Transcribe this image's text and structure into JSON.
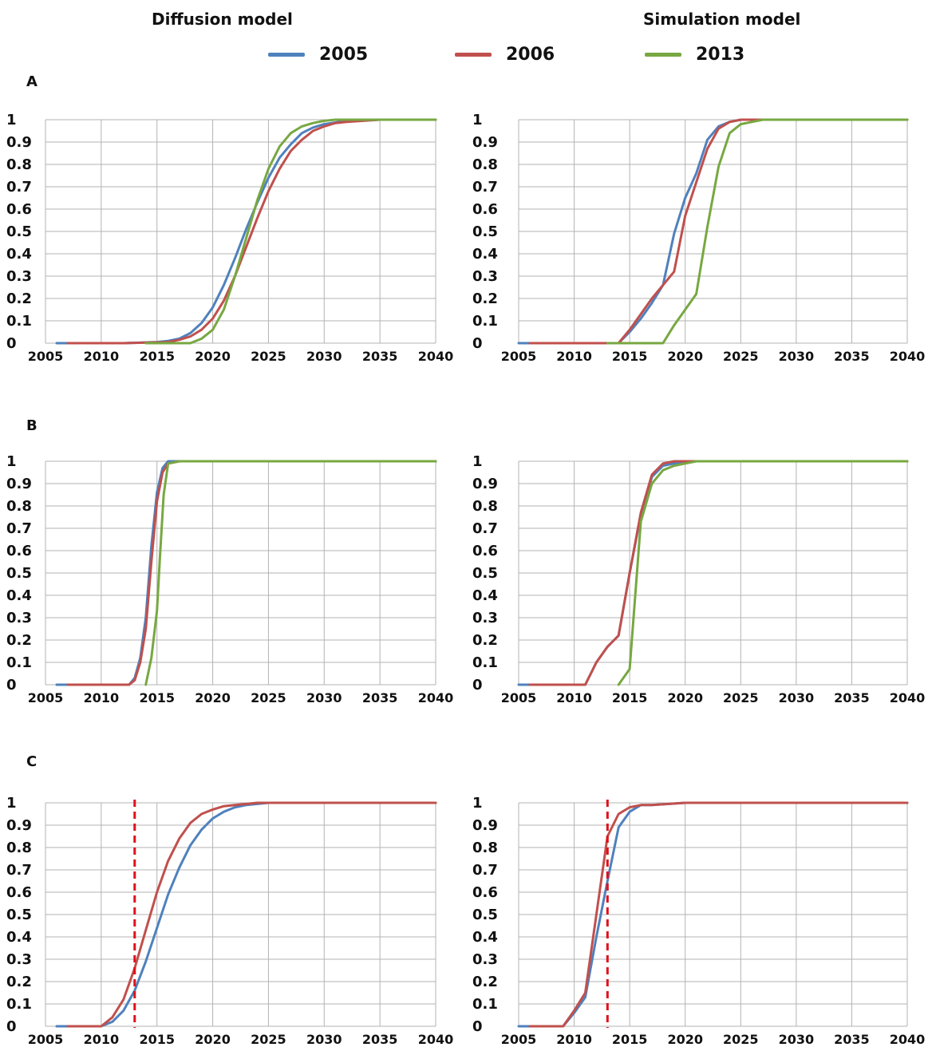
{
  "headers": {
    "left": "Diffusion model",
    "right": "Simulation model"
  },
  "legend": [
    {
      "label": "2005",
      "color": "#4f81bd"
    },
    {
      "label": "2006",
      "color": "#c0504d"
    },
    {
      "label": "2013",
      "color": "#77a841"
    }
  ],
  "colors": {
    "grid": "#b3b3b3",
    "vline": "#e0101a"
  },
  "rows": [
    {
      "label": "A"
    },
    {
      "label": "B"
    },
    {
      "label": "C"
    }
  ],
  "chart_data": [
    {
      "type": "line",
      "panel": "A",
      "model": "Diffusion model",
      "xlim": [
        2005,
        2040
      ],
      "ylim": [
        0,
        1
      ],
      "x_ticks": [
        2005,
        2010,
        2015,
        2020,
        2025,
        2030,
        2035,
        2040
      ],
      "y_ticks": [
        0,
        0.1,
        0.2,
        0.3,
        0.4,
        0.5,
        0.6,
        0.7,
        0.8,
        0.9,
        1
      ],
      "series": [
        {
          "name": "2005",
          "x": [
            2006,
            2012,
            2015,
            2016,
            2017,
            2018,
            2019,
            2020,
            2021,
            2022,
            2023,
            2024,
            2025,
            2026,
            2027,
            2028,
            2029,
            2030,
            2032,
            2035,
            2040
          ],
          "values": [
            0,
            0,
            0.005,
            0.01,
            0.02,
            0.045,
            0.09,
            0.16,
            0.26,
            0.38,
            0.51,
            0.63,
            0.74,
            0.83,
            0.89,
            0.94,
            0.965,
            0.98,
            0.995,
            1,
            1
          ]
        },
        {
          "name": "2006",
          "x": [
            2007,
            2012,
            2016,
            2017,
            2018,
            2019,
            2020,
            2021,
            2022,
            2023,
            2024,
            2025,
            2026,
            2027,
            2028,
            2029,
            2030,
            2031,
            2032,
            2035,
            2040
          ],
          "values": [
            0,
            0,
            0.005,
            0.015,
            0.03,
            0.06,
            0.11,
            0.19,
            0.3,
            0.43,
            0.56,
            0.68,
            0.78,
            0.86,
            0.91,
            0.95,
            0.97,
            0.985,
            0.99,
            1,
            1
          ]
        },
        {
          "name": "2013",
          "x": [
            2014,
            2018,
            2019,
            2020,
            2021,
            2022,
            2023,
            2024,
            2025,
            2026,
            2027,
            2028,
            2029,
            2030,
            2031,
            2035,
            2040
          ],
          "values": [
            0,
            0,
            0.02,
            0.06,
            0.15,
            0.3,
            0.47,
            0.64,
            0.78,
            0.88,
            0.94,
            0.97,
            0.985,
            0.995,
            1,
            1,
            1
          ]
        }
      ]
    },
    {
      "type": "line",
      "panel": "A",
      "model": "Simulation model",
      "xlim": [
        2005,
        2040
      ],
      "ylim": [
        0,
        1
      ],
      "x_ticks": [
        2005,
        2010,
        2015,
        2020,
        2025,
        2030,
        2035,
        2040
      ],
      "y_ticks": [
        0,
        0.1,
        0.2,
        0.3,
        0.4,
        0.5,
        0.6,
        0.7,
        0.8,
        0.9,
        1
      ],
      "series": [
        {
          "name": "2005",
          "x": [
            2005,
            2014,
            2015,
            2016,
            2017,
            2018,
            2019,
            2020,
            2021,
            2022,
            2023,
            2024,
            2025,
            2026,
            2027,
            2040
          ],
          "values": [
            0,
            0,
            0.05,
            0.11,
            0.18,
            0.26,
            0.49,
            0.65,
            0.76,
            0.91,
            0.97,
            0.99,
            1,
            1,
            1,
            1
          ]
        },
        {
          "name": "2006",
          "x": [
            2006,
            2014,
            2015,
            2016,
            2017,
            2018,
            2019,
            2020,
            2021,
            2022,
            2023,
            2024,
            2025,
            2026,
            2040
          ],
          "values": [
            0,
            0,
            0.06,
            0.13,
            0.2,
            0.26,
            0.32,
            0.57,
            0.72,
            0.87,
            0.96,
            0.99,
            1,
            1,
            1
          ]
        },
        {
          "name": "2013",
          "x": [
            2013,
            2018,
            2019,
            2020,
            2021,
            2022,
            2023,
            2024,
            2025,
            2026,
            2027,
            2028,
            2040
          ],
          "values": [
            0,
            0,
            0.08,
            0.15,
            0.22,
            0.52,
            0.79,
            0.94,
            0.98,
            0.99,
            1,
            1,
            1
          ]
        }
      ]
    },
    {
      "type": "line",
      "panel": "B",
      "model": "Diffusion model",
      "xlim": [
        2005,
        2040
      ],
      "ylim": [
        0,
        1
      ],
      "x_ticks": [
        2005,
        2010,
        2015,
        2020,
        2025,
        2030,
        2035,
        2040
      ],
      "y_ticks": [
        0,
        0.1,
        0.2,
        0.3,
        0.4,
        0.5,
        0.6,
        0.7,
        0.8,
        0.9,
        1
      ],
      "series": [
        {
          "name": "2005",
          "x": [
            2006,
            2012.5,
            2013,
            2013.5,
            2014,
            2014.5,
            2015,
            2015.5,
            2016,
            2017,
            2040
          ],
          "values": [
            0,
            0,
            0.03,
            0.12,
            0.3,
            0.62,
            0.86,
            0.97,
            1,
            1,
            1
          ]
        },
        {
          "name": "2006",
          "x": [
            2007,
            2012.5,
            2013,
            2013.5,
            2014,
            2014.5,
            2015,
            2015.5,
            2016,
            2017,
            2040
          ],
          "values": [
            0,
            0,
            0.02,
            0.1,
            0.25,
            0.55,
            0.82,
            0.95,
            0.99,
            1,
            1
          ]
        },
        {
          "name": "2013",
          "x": [
            2014,
            2014.5,
            2015,
            2015.3,
            2015.6,
            2016,
            2017,
            2040
          ],
          "values": [
            0,
            0.12,
            0.33,
            0.6,
            0.85,
            0.99,
            1,
            1
          ]
        }
      ]
    },
    {
      "type": "line",
      "panel": "B",
      "model": "Simulation model",
      "xlim": [
        2005,
        2040
      ],
      "ylim": [
        0,
        1
      ],
      "x_ticks": [
        2005,
        2010,
        2015,
        2020,
        2025,
        2030,
        2035,
        2040
      ],
      "y_ticks": [
        0,
        0.1,
        0.2,
        0.3,
        0.4,
        0.5,
        0.6,
        0.7,
        0.8,
        0.9,
        1
      ],
      "series": [
        {
          "name": "2005",
          "x": [
            2005,
            2011,
            2012,
            2013,
            2014,
            2015,
            2016,
            2017,
            2018,
            2019,
            2020,
            2040
          ],
          "values": [
            0,
            0,
            0.1,
            0.17,
            0.22,
            0.5,
            0.76,
            0.93,
            0.98,
            0.99,
            1,
            1
          ]
        },
        {
          "name": "2006",
          "x": [
            2006,
            2011,
            2012,
            2013,
            2014,
            2015,
            2016,
            2017,
            2018,
            2019,
            2020,
            2040
          ],
          "values": [
            0,
            0,
            0.1,
            0.17,
            0.22,
            0.5,
            0.77,
            0.94,
            0.99,
            1,
            1,
            1
          ]
        },
        {
          "name": "2013",
          "x": [
            2014,
            2015,
            2016,
            2017,
            2018,
            2019,
            2020,
            2021,
            2040
          ],
          "values": [
            0,
            0.07,
            0.73,
            0.9,
            0.96,
            0.98,
            0.99,
            1,
            1
          ]
        }
      ]
    },
    {
      "type": "line",
      "panel": "C",
      "model": "Diffusion model",
      "xlim": [
        2005,
        2040
      ],
      "ylim": [
        0,
        1
      ],
      "x_ticks": [
        2005,
        2010,
        2015,
        2020,
        2025,
        2030,
        2035,
        2040
      ],
      "y_ticks": [
        0,
        0.1,
        0.2,
        0.3,
        0.4,
        0.5,
        0.6,
        0.7,
        0.8,
        0.9,
        1
      ],
      "vline_x": 2013,
      "series": [
        {
          "name": "2005",
          "x": [
            2006,
            2010,
            2011,
            2012,
            2013,
            2014,
            2015,
            2016,
            2017,
            2018,
            2019,
            2020,
            2021,
            2022,
            2023,
            2024,
            2025,
            2027,
            2030,
            2040
          ],
          "values": [
            0,
            0,
            0.02,
            0.07,
            0.16,
            0.29,
            0.44,
            0.59,
            0.71,
            0.81,
            0.88,
            0.93,
            0.96,
            0.98,
            0.99,
            0.995,
            1,
            1,
            1,
            1
          ]
        },
        {
          "name": "2006",
          "x": [
            2007,
            2010,
            2011,
            2012,
            2013,
            2014,
            2015,
            2016,
            2017,
            2018,
            2019,
            2020,
            2021,
            2022,
            2023,
            2024,
            2026,
            2030,
            2040
          ],
          "values": [
            0,
            0,
            0.04,
            0.12,
            0.26,
            0.43,
            0.6,
            0.74,
            0.84,
            0.91,
            0.95,
            0.97,
            0.985,
            0.99,
            0.995,
            1,
            1,
            1,
            1
          ]
        }
      ]
    },
    {
      "type": "line",
      "panel": "C",
      "model": "Simulation model",
      "xlim": [
        2005,
        2040
      ],
      "ylim": [
        0,
        1
      ],
      "x_ticks": [
        2005,
        2010,
        2015,
        2020,
        2025,
        2030,
        2035,
        2040
      ],
      "y_ticks": [
        0,
        0.1,
        0.2,
        0.3,
        0.4,
        0.5,
        0.6,
        0.7,
        0.8,
        0.9,
        1
      ],
      "vline_x": 2013,
      "series": [
        {
          "name": "2005",
          "x": [
            2005,
            2009,
            2010,
            2011,
            2012,
            2013,
            2014,
            2015,
            2016,
            2017,
            2020,
            2040
          ],
          "values": [
            0,
            0,
            0.06,
            0.13,
            0.4,
            0.65,
            0.89,
            0.96,
            0.99,
            0.99,
            1,
            1
          ]
        },
        {
          "name": "2006",
          "x": [
            2006,
            2009,
            2010,
            2011,
            2012,
            2013,
            2014,
            2015,
            2016,
            2017,
            2020,
            2040
          ],
          "values": [
            0,
            0,
            0.07,
            0.15,
            0.5,
            0.85,
            0.95,
            0.98,
            0.99,
            0.99,
            1,
            1
          ]
        }
      ]
    }
  ]
}
